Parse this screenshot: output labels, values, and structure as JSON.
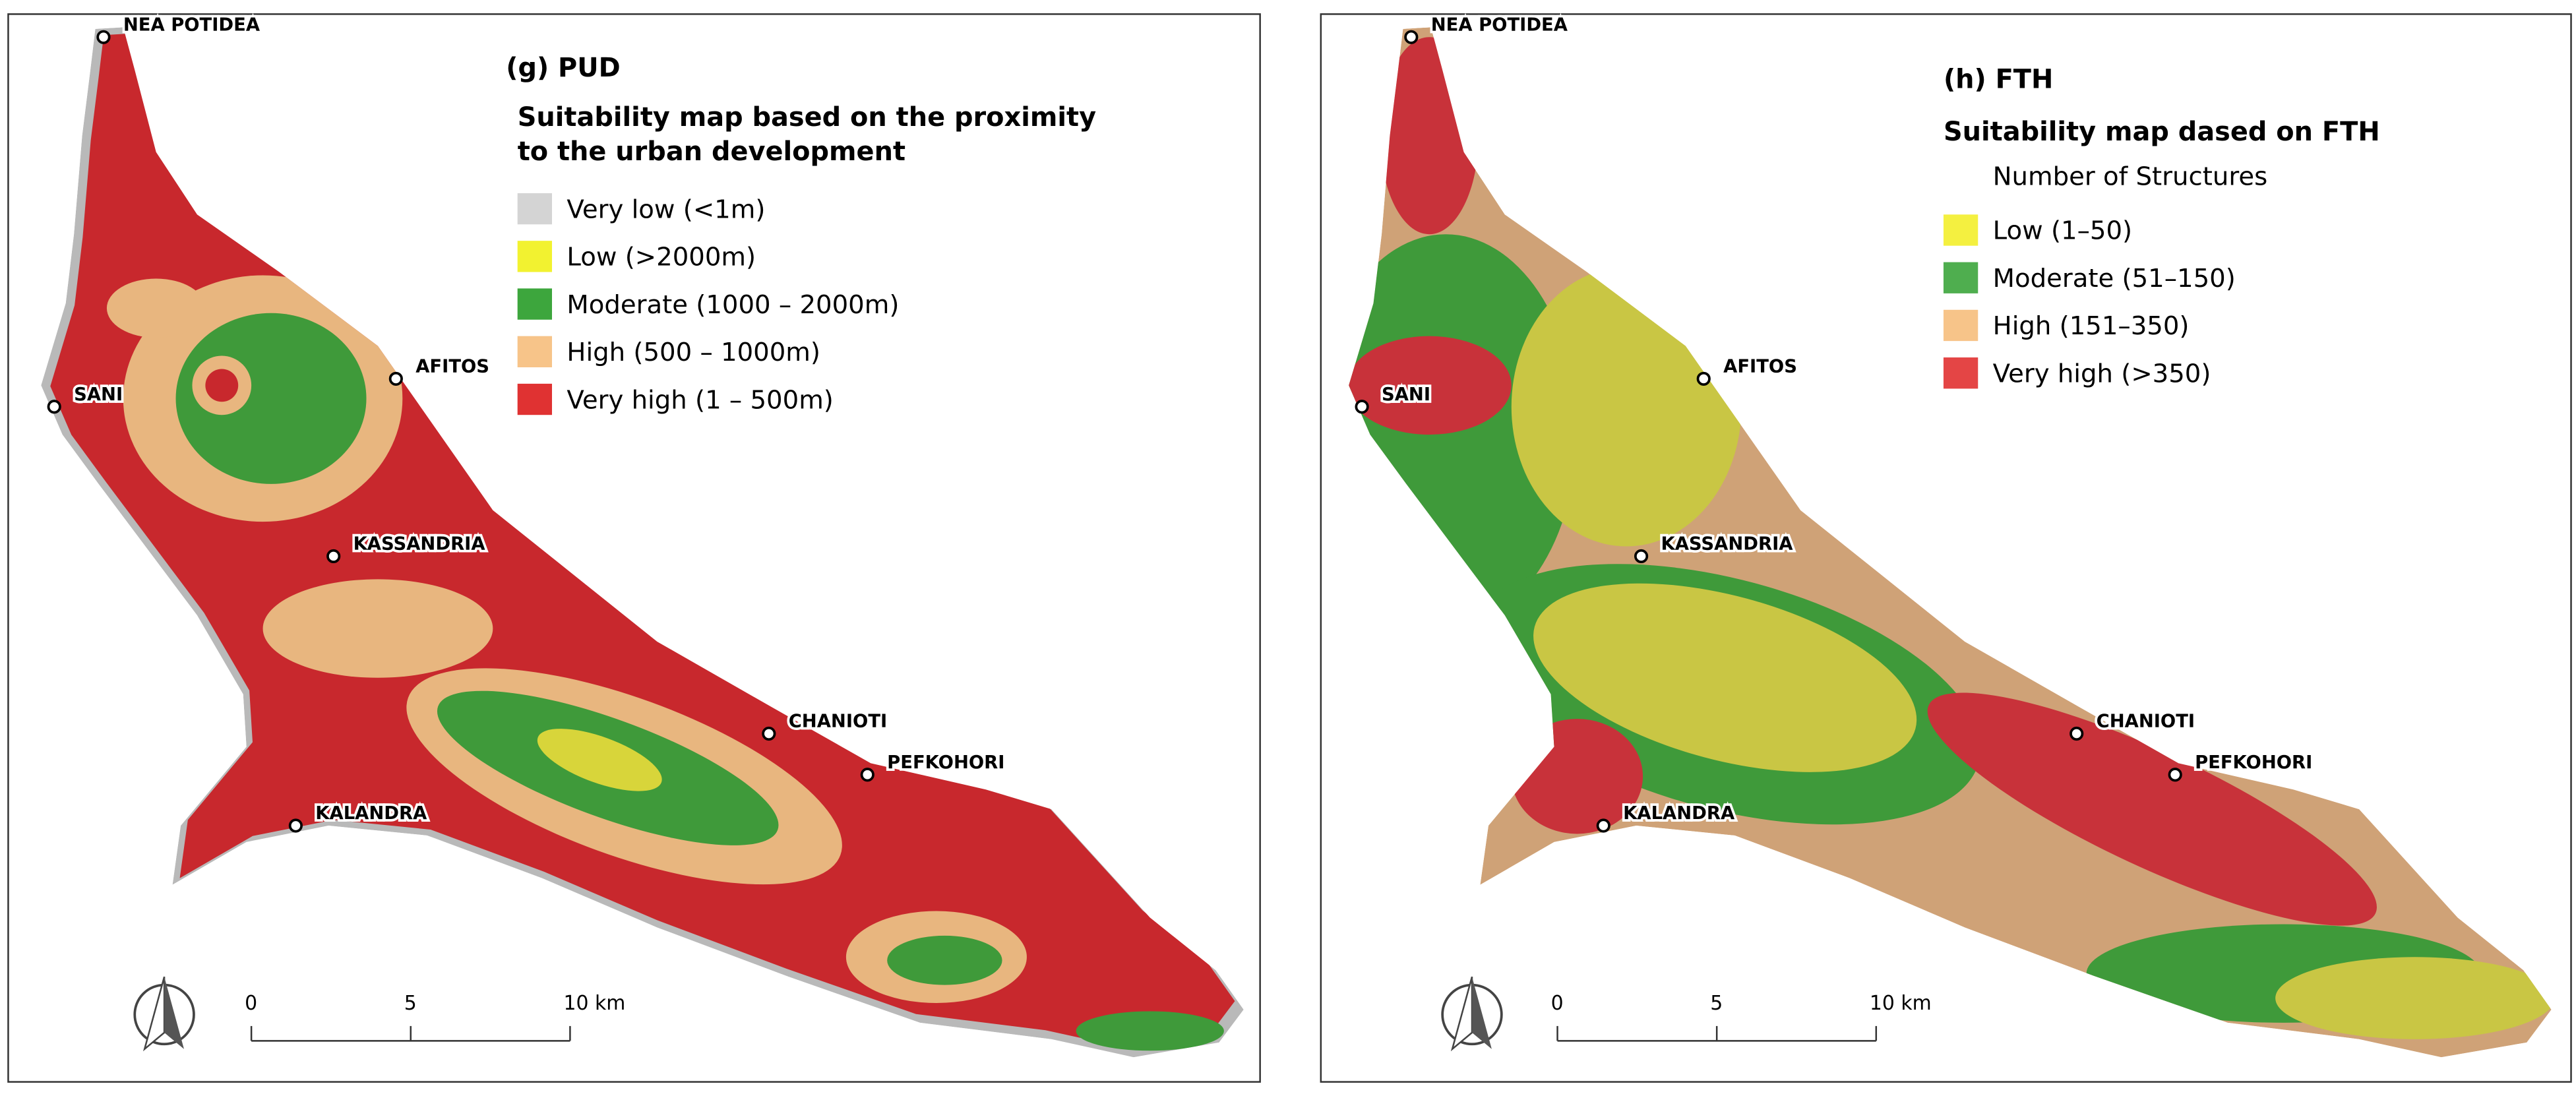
{
  "panels": [
    {
      "title": "(g) PUD",
      "legend_title": [
        "Suitability map based on the proximity",
        "to the urban development"
      ],
      "legend": [
        {
          "label": "Very low (<1m)",
          "color": "#d4d4d4"
        },
        {
          "label": "Low (>2000m)",
          "color": "#f2f230"
        },
        {
          "label": "Moderate (1000 – 2000m)",
          "color": "#3da63d"
        },
        {
          "label": "High (500 – 1000m)",
          "color": "#f7c489"
        },
        {
          "label": "Very high (1 – 500m)",
          "color": "#e03232"
        }
      ],
      "towns": [
        "NEA POTIDEA",
        "SANI",
        "AFITOS",
        "KASSANDRIA",
        "CHANIOTI",
        "PEFKOHORI",
        "KALANDRA"
      ],
      "scale_labels": [
        "0",
        "5",
        "10 km"
      ]
    },
    {
      "title": "(h) FTH",
      "legend_title": [
        "Suitability map dased on FTH"
      ],
      "legend_subtitle": "Number of Structures",
      "legend": [
        {
          "label": "Low (1–50)",
          "color": "#f4f040"
        },
        {
          "label": "Moderate (51–150)",
          "color": "#4fae4f"
        },
        {
          "label": "High (151–350)",
          "color": "#f7c489"
        },
        {
          "label": "Very high (>350)",
          "color": "#e44545"
        }
      ],
      "towns": [
        "NEA POTIDEA",
        "SANI",
        "AFITOS",
        "KASSANDRIA",
        "CHANIOTI",
        "PEFKOHORI",
        "KALANDRA"
      ],
      "scale_labels": [
        "0",
        "5",
        "10 km"
      ]
    }
  ]
}
